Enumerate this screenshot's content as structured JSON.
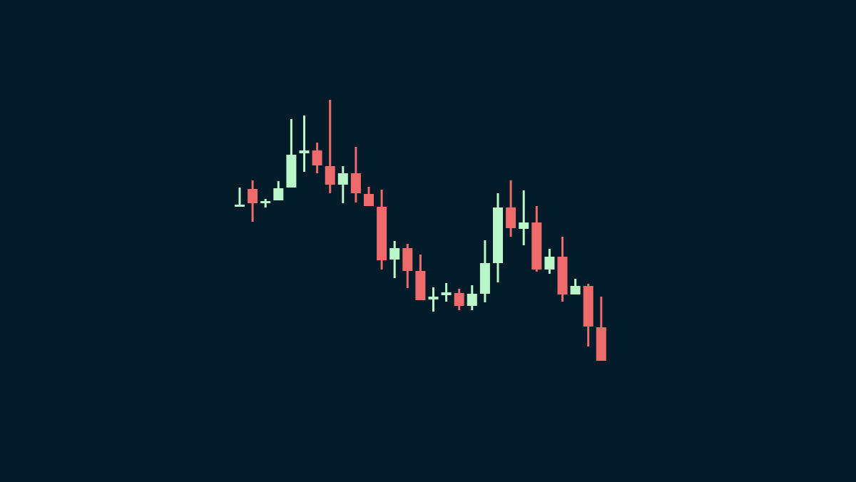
{
  "chart_data": {
    "type": "candlestick",
    "categories": [
      null,
      null,
      null,
      null,
      null,
      null,
      null,
      null,
      null,
      null,
      null,
      null,
      null,
      null,
      null,
      null,
      null,
      null,
      null,
      null,
      null,
      null,
      null,
      null,
      null,
      null,
      null,
      null,
      null
    ],
    "open": [
      386,
      411,
      391,
      395,
      413,
      461,
      465,
      443,
      417,
      433,
      404,
      386,
      312,
      328,
      296,
      256,
      262,
      265,
      247,
      264,
      307,
      385,
      355,
      364,
      298,
      316,
      263,
      275,
      217
    ],
    "high": [
      413,
      423,
      397,
      422,
      509,
      514,
      476,
      536,
      443,
      470,
      414,
      410,
      338,
      334,
      319,
      273,
      279,
      271,
      276,
      339,
      405,
      423,
      409,
      387,
      327,
      344,
      285,
      278,
      260
    ],
    "low": [
      386,
      365,
      385,
      395,
      413,
      435,
      433,
      405,
      391,
      392,
      387,
      298,
      286,
      272,
      255,
      239,
      253,
      241,
      241,
      252,
      280,
      344,
      332,
      295,
      292,
      253,
      263,
      190,
      170
    ],
    "close": [
      389,
      391,
      394,
      412,
      459,
      465,
      444,
      417,
      433,
      405,
      387,
      311,
      328,
      296,
      255,
      260,
      266,
      247,
      264,
      307,
      385,
      356,
      364,
      298,
      316,
      263,
      275,
      218,
      170
    ],
    "up_color": "#b9f6c8",
    "down_color": "#ee6b6b",
    "ylim": [
      0,
      676
    ]
  }
}
